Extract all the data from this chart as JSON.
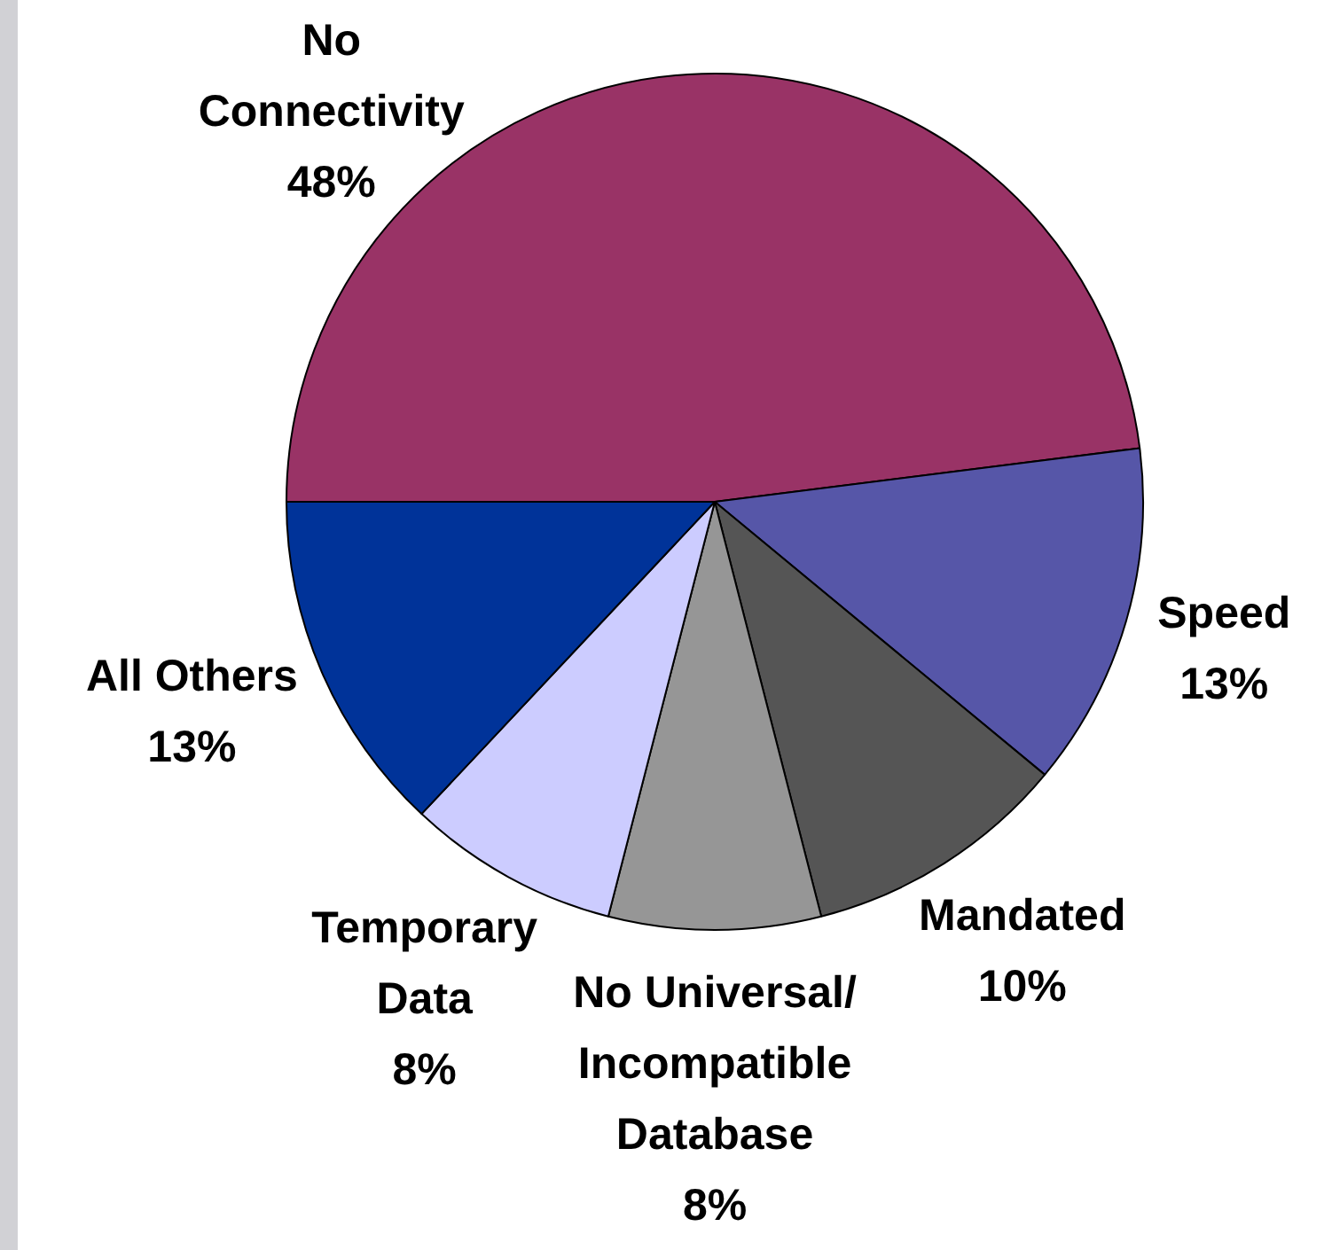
{
  "chart_data": {
    "type": "pie",
    "categories": [
      "No Connectivity",
      "Speed",
      "Mandated",
      "No Universal/ Incompatible Database",
      "Temporary Data",
      "All Others"
    ],
    "values": [
      48,
      13,
      10,
      8,
      8,
      13
    ],
    "colors": [
      "#993366",
      "#5656a8",
      "#555555",
      "#969696",
      "#ccccff",
      "#003399"
    ],
    "value_labels": [
      "48%",
      "13%",
      "10%",
      "8%",
      "8%",
      "13%"
    ],
    "legend": false
  }
}
